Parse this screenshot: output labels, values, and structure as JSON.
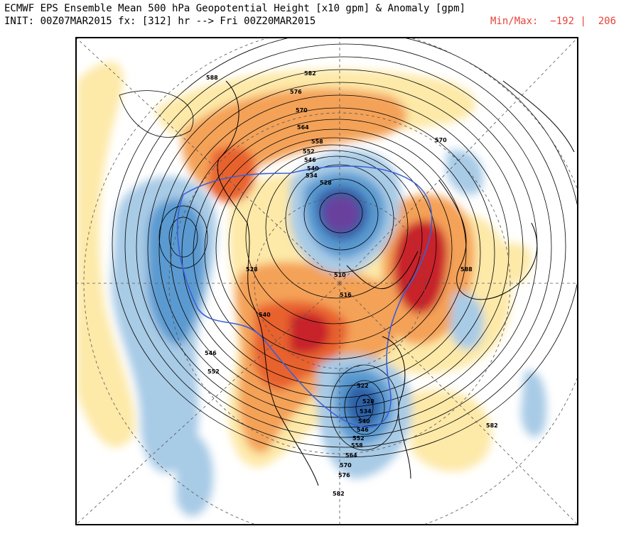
{
  "header": {
    "title_line": "ECMWF EPS Ensemble Mean 500 hPa Geopotential Height [x10 gpm] & Anomaly [gpm]",
    "init_line": "INIT: 00Z07MAR2015 fx: [312] hr --> Fri 00Z20MAR2015",
    "minmax_label": "Min/Max:",
    "min_value": "−192",
    "separator": "|",
    "max_value": "206"
  },
  "colors": {
    "strong_positive": "#c8232b",
    "positive": "#e8622e",
    "mild_positive": "#f4a259",
    "weak_positive": "#fde9a8",
    "weak_negative": "#a8cbe6",
    "negative": "#5a9ad0",
    "strong_negative": "#2f62a8",
    "extreme_negative": "#6b3f9e",
    "contour": "#000000",
    "highlight_contour": "#3a5fd9",
    "coastline": "#000000",
    "grid": "#555555",
    "minmax_text": "#e8433a"
  },
  "contour_labels": [
    {
      "text": "588"
    },
    {
      "text": "582"
    },
    {
      "text": "576"
    },
    {
      "text": "570"
    },
    {
      "text": "564"
    },
    {
      "text": "558"
    },
    {
      "text": "552"
    },
    {
      "text": "546"
    },
    {
      "text": "540"
    },
    {
      "text": "534"
    },
    {
      "text": "528"
    },
    {
      "text": "570"
    },
    {
      "text": "528"
    },
    {
      "text": "516"
    },
    {
      "text": "510"
    },
    {
      "text": "540"
    },
    {
      "text": "546"
    },
    {
      "text": "552"
    },
    {
      "text": "522"
    },
    {
      "text": "528"
    },
    {
      "text": "534"
    },
    {
      "text": "540"
    },
    {
      "text": "546"
    },
    {
      "text": "552"
    },
    {
      "text": "558"
    },
    {
      "text": "564"
    },
    {
      "text": "570"
    },
    {
      "text": "576"
    },
    {
      "text": "582"
    },
    {
      "text": "582"
    },
    {
      "text": "588"
    }
  ]
}
